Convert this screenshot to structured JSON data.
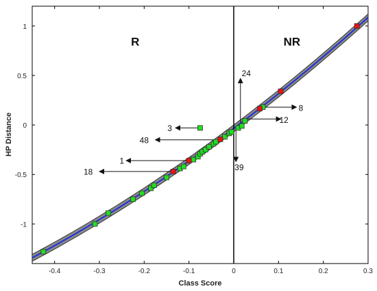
{
  "chart_data": {
    "type": "scatter",
    "xlabel": "Class Score",
    "ylabel": "HP Distance",
    "xlim": [
      -0.45,
      0.3
    ],
    "ylim": [
      -1.4,
      1.2
    ],
    "x_ticks": [
      -0.4,
      -0.3,
      -0.2,
      -0.1,
      0,
      0.1,
      0.2,
      0.3
    ],
    "x_tick_labels": [
      "-0.4",
      "-0.3",
      "-0.2",
      "-0.1",
      "0",
      "0.1",
      "0.2",
      "0.3"
    ],
    "y_ticks": [
      -1,
      -0.5,
      0,
      0.5,
      1
    ],
    "y_tick_labels": [
      "-1",
      "-0.5",
      "0",
      "0.5",
      "1"
    ],
    "grid": false,
    "region_labels": [
      {
        "text": "R",
        "x": -0.22,
        "y": 0.8
      },
      {
        "text": "NR",
        "x": 0.13,
        "y": 0.8
      }
    ],
    "decision_boundary_x": 0,
    "curve": {
      "x_start": -0.45,
      "x_end": 0.3,
      "color": "#1f2fd8",
      "band_color": "#8a8a8a",
      "band_half_width": 0.035
    },
    "series": [
      {
        "color": "#22dd22",
        "points": [
          [
            -0.425,
            -1.28
          ],
          [
            -0.31,
            -1.0
          ],
          [
            -0.28,
            -0.89
          ],
          [
            -0.225,
            -0.75
          ],
          [
            -0.205,
            -0.69
          ],
          [
            -0.185,
            -0.64
          ],
          [
            -0.178,
            -0.61
          ],
          [
            -0.15,
            -0.53
          ],
          [
            -0.12,
            -0.44
          ],
          [
            -0.112,
            -0.42
          ],
          [
            -0.09,
            -0.35
          ],
          [
            -0.08,
            -0.32
          ],
          [
            -0.075,
            -0.29
          ],
          [
            -0.07,
            -0.27
          ],
          [
            -0.063,
            -0.25
          ],
          [
            -0.055,
            -0.22
          ],
          [
            -0.045,
            -0.19
          ],
          [
            -0.04,
            -0.17
          ],
          [
            -0.02,
            -0.12
          ],
          [
            -0.01,
            -0.085
          ],
          [
            -0.005,
            -0.07
          ],
          [
            0.01,
            -0.03
          ],
          [
            0.018,
            -0.01
          ],
          [
            0.025,
            0.04
          ],
          [
            0.065,
            0.18
          ],
          [
            -0.075,
            -0.03
          ]
        ]
      },
      {
        "color": "#ee1111",
        "points": [
          [
            -0.135,
            -0.47
          ],
          [
            -0.1,
            -0.36
          ],
          [
            -0.03,
            -0.145
          ],
          [
            0.058,
            0.165
          ],
          [
            0.105,
            0.34
          ],
          [
            0.275,
            1.0
          ]
        ]
      }
    ],
    "annotations": [
      {
        "label": "24",
        "from": [
          0.015,
          0.0
        ],
        "to": [
          0.015,
          0.47
        ],
        "label_at": [
          0.028,
          0.52
        ]
      },
      {
        "label": "8",
        "from": [
          0.065,
          0.18
        ],
        "to": [
          0.14,
          0.18
        ],
        "label_at": [
          0.15,
          0.17
        ]
      },
      {
        "label": "12",
        "from": [
          0.02,
          0.06
        ],
        "to": [
          0.105,
          0.06
        ],
        "label_at": [
          0.112,
          0.05
        ]
      },
      {
        "label": "3",
        "from": [
          -0.075,
          -0.03
        ],
        "to": [
          -0.13,
          -0.03
        ],
        "label_at": [
          -0.143,
          -0.035
        ]
      },
      {
        "label": "48",
        "from": [
          -0.04,
          -0.15
        ],
        "to": [
          -0.175,
          -0.15
        ],
        "label_at": [
          -0.2,
          -0.155
        ]
      },
      {
        "label": "1",
        "from": [
          -0.1,
          -0.36
        ],
        "to": [
          -0.24,
          -0.36
        ],
        "label_at": [
          -0.25,
          -0.365
        ]
      },
      {
        "label": "18",
        "from": [
          -0.135,
          -0.47
        ],
        "to": [
          -0.3,
          -0.47
        ],
        "label_at": [
          -0.325,
          -0.475
        ]
      },
      {
        "label": "39",
        "from": [
          0.005,
          -0.01
        ],
        "to": [
          0.005,
          -0.37
        ],
        "label_at": [
          0.012,
          -0.43
        ]
      }
    ]
  }
}
